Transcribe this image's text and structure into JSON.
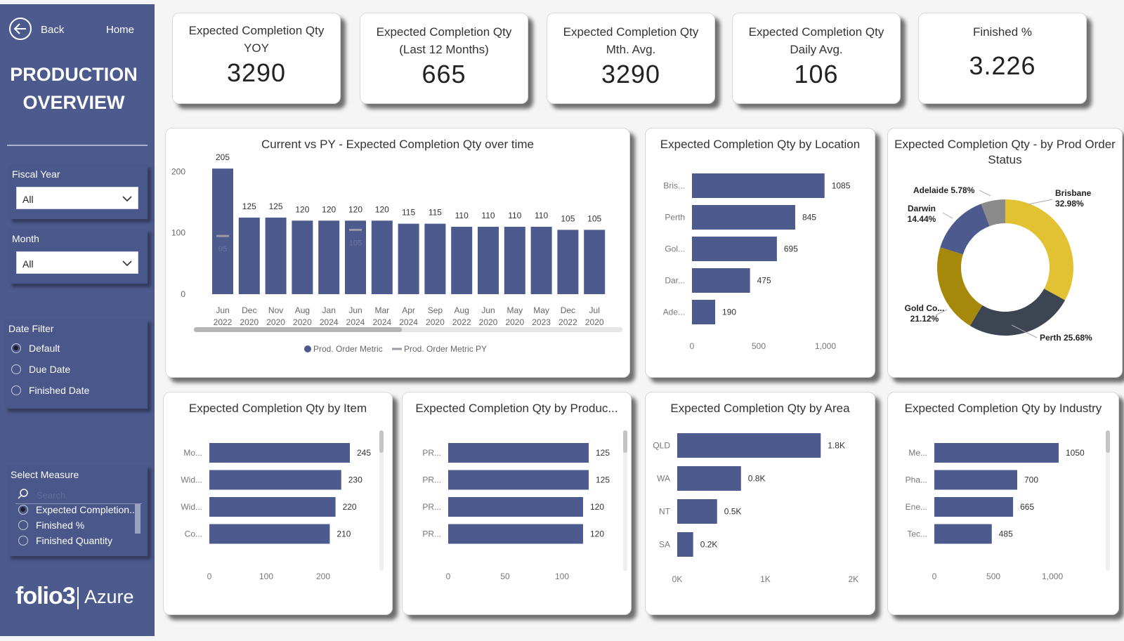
{
  "sidebar": {
    "nav": {
      "back": "Back",
      "home": "Home"
    },
    "title_line1": "PRODUCTION",
    "title_line2": "OVERVIEW",
    "fiscal_year": {
      "label": "Fiscal Year",
      "value": "All"
    },
    "month": {
      "label": "Month",
      "value": "All"
    },
    "date_filter": {
      "label": "Date Filter",
      "options": [
        {
          "label": "Default",
          "selected": true
        },
        {
          "label": "Due Date",
          "selected": false
        },
        {
          "label": "Finished Date",
          "selected": false
        }
      ]
    },
    "select_measure": {
      "label": "Select Measure",
      "search_placeholder": "Search",
      "options": [
        {
          "label": "Expected Completion...",
          "selected": true
        },
        {
          "label": "Finished %",
          "selected": false
        },
        {
          "label": "Finished Quantity",
          "selected": false
        }
      ]
    },
    "logo": {
      "brand": "folio3",
      "product": "Azure"
    }
  },
  "kpis": [
    {
      "line1": "Expected Completion Qty",
      "line2": "YOY",
      "value": "3290"
    },
    {
      "line1": "Expected Completion Qty",
      "line2": "(Last 12 Months)",
      "value": "665"
    },
    {
      "line1": "Expected Completion Qty",
      "line2": "Mth. Avg.",
      "value": "3290"
    },
    {
      "line1": "Expected Completion Qty",
      "line2": "Daily Avg.",
      "value": "106"
    },
    {
      "line1": "Finished %",
      "line2": "",
      "value": "3.226"
    }
  ],
  "colors": {
    "bar": "#4d5a8e",
    "sidebar": "#4d5a8e",
    "donut": [
      "#e2c232",
      "#3d4452",
      "#a6890a",
      "#4d5a8e",
      "#8a8a8a"
    ]
  },
  "chart_data": [
    {
      "id": "over_time",
      "type": "bar",
      "title": "Current vs PY - Expected Completion Qty over time",
      "categories": [
        [
          "Jun",
          "2022"
        ],
        [
          "Dec",
          "2020"
        ],
        [
          "Nov",
          "2020"
        ],
        [
          "Aug",
          "2020"
        ],
        [
          "Jan",
          "2024"
        ],
        [
          "Jun",
          "2024"
        ],
        [
          "Mar",
          "2024"
        ],
        [
          "Apr",
          "2024"
        ],
        [
          "Sep",
          "2020"
        ],
        [
          "Aug",
          "2022"
        ],
        [
          "Jun",
          "2020"
        ],
        [
          "May",
          "2020"
        ],
        [
          "May",
          "2023"
        ],
        [
          "Dec",
          "2022"
        ],
        [
          "Jul",
          "2020"
        ]
      ],
      "series": [
        {
          "name": "Prod. Order Metric",
          "values": [
            205,
            125,
            125,
            120,
            120,
            120,
            120,
            115,
            115,
            110,
            110,
            110,
            110,
            105,
            105
          ]
        },
        {
          "name": "Prod. Order Metric PY",
          "values": [
            95,
            null,
            null,
            null,
            null,
            105,
            null,
            null,
            null,
            null,
            null,
            null,
            null,
            null,
            null
          ]
        }
      ],
      "yticks": [
        0,
        100,
        200
      ],
      "ylim": [
        0,
        220
      ]
    },
    {
      "id": "location",
      "type": "bar",
      "orientation": "horizontal",
      "title": "Expected Completion Qty by Location",
      "categories": [
        "Bris...",
        "Perth",
        "Gol...",
        "Dar...",
        "Ade..."
      ],
      "values": [
        1085,
        845,
        695,
        475,
        190
      ],
      "value_labels": [
        "1085",
        "845",
        "695",
        "475",
        "190"
      ],
      "xticks": [
        "0",
        "500",
        "1,000"
      ],
      "xlim": [
        0,
        1150
      ]
    },
    {
      "id": "status",
      "type": "pie",
      "title": "Expected Completion Qty - by Prod Order Status",
      "slices": [
        {
          "name": "Brisbane",
          "value": 32.98,
          "label": "32.98%"
        },
        {
          "name": "Perth",
          "value": 25.68,
          "label": "25.68%"
        },
        {
          "name": "Gold Co...",
          "value": 21.12,
          "label": "21.12%"
        },
        {
          "name": "Darwin",
          "value": 14.44,
          "label": "14.44%"
        },
        {
          "name": "Adelaide",
          "value": 5.78,
          "label": "5.78%"
        }
      ]
    },
    {
      "id": "item",
      "type": "bar",
      "orientation": "horizontal",
      "title": "Expected Completion Qty by Item",
      "categories": [
        "Mo...",
        "Wid...",
        "Wid...",
        "Co..."
      ],
      "values": [
        245,
        230,
        220,
        210
      ],
      "value_labels": [
        "245",
        "230",
        "220",
        "210"
      ],
      "xticks": [
        "0",
        "100",
        "200"
      ],
      "xlim": [
        0,
        245
      ]
    },
    {
      "id": "product",
      "type": "bar",
      "orientation": "horizontal",
      "title": "Expected Completion Qty by Produc...",
      "categories": [
        "PR...",
        "PR...",
        "PR...",
        "PR..."
      ],
      "values": [
        125,
        125,
        120,
        120
      ],
      "value_labels": [
        "125",
        "125",
        "120",
        "120"
      ],
      "xticks": [
        "0",
        "50",
        "100"
      ],
      "xlim": [
        0,
        125
      ]
    },
    {
      "id": "area",
      "type": "bar",
      "orientation": "horizontal",
      "title": "Expected Completion Qty by Area",
      "categories": [
        "QLD",
        "WA",
        "NT",
        "SA"
      ],
      "values": [
        1.8,
        0.8,
        0.5,
        0.2
      ],
      "value_labels": [
        "1.8K",
        "0.8K",
        "0.5K",
        "0.2K"
      ],
      "xticks": [
        "0K",
        "1K",
        "2K"
      ],
      "xlim": [
        0,
        2
      ]
    },
    {
      "id": "industry",
      "type": "bar",
      "orientation": "horizontal",
      "title": "Expected Completion Qty by Industry",
      "categories": [
        "Me...",
        "Pha...",
        "Ene...",
        "Tec..."
      ],
      "values": [
        1050,
        700,
        665,
        485
      ],
      "value_labels": [
        "1050",
        "700",
        "665",
        "485"
      ],
      "xticks": [
        "0",
        "500",
        "1,000"
      ],
      "xlim": [
        0,
        1050
      ]
    }
  ]
}
